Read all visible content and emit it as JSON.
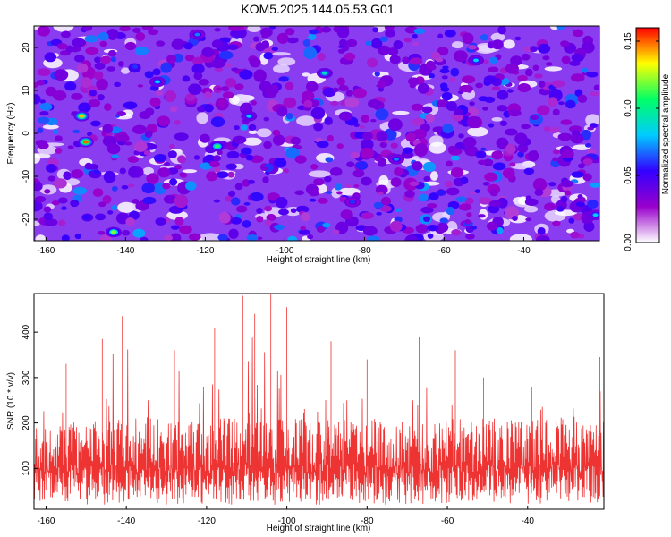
{
  "chart_data": [
    {
      "type": "heatmap",
      "title": "KOM5.2025.144.05.53.G01",
      "xlabel": "Height of straight line (km)",
      "ylabel": "Frequency (Hz)",
      "xlim": [
        -163,
        -21
      ],
      "ylim": [
        -25,
        25
      ],
      "xticks": [
        -160,
        -140,
        -120,
        -100,
        -80,
        -60,
        -40
      ],
      "yticks": [
        -20,
        -10,
        0,
        10,
        20
      ],
      "colorbar": {
        "label": "Normalized spectral amplitude",
        "range": [
          0.0,
          0.16
        ],
        "ticks": [
          "0.00",
          "0.05",
          "0.10",
          "0.15"
        ],
        "colormap": [
          "#ffffff",
          "#9900cc",
          "#3300ff",
          "#00ccff",
          "#00ff66",
          "#ffff00",
          "#ff0000"
        ]
      },
      "hotspots": [
        {
          "x": -151,
          "y": 4,
          "value": 0.14
        },
        {
          "x": -150,
          "y": -2,
          "value": 0.15
        },
        {
          "x": -117,
          "y": -3,
          "value": 0.11
        },
        {
          "x": -143,
          "y": -23,
          "value": 0.12
        },
        {
          "x": -90,
          "y": 14,
          "value": 0.09
        },
        {
          "x": -52,
          "y": 17,
          "value": 0.08
        },
        {
          "x": -22,
          "y": -19,
          "value": 0.08
        },
        {
          "x": -132,
          "y": 12,
          "value": 0.08
        },
        {
          "x": -109,
          "y": 4,
          "value": 0.08
        },
        {
          "x": -72,
          "y": -6,
          "value": 0.07
        },
        {
          "x": -122,
          "y": 23,
          "value": 0.07
        },
        {
          "x": -83,
          "y": -16,
          "value": 0.06
        }
      ]
    },
    {
      "type": "line",
      "xlabel": "Height of straight line (km)",
      "ylabel": "SNR (10 * v/v)",
      "xlim": [
        -163,
        -21
      ],
      "ylim": [
        10,
        485
      ],
      "xticks": [
        -160,
        -140,
        -120,
        -100,
        -80,
        -60,
        -40
      ],
      "yticks": [
        100,
        200,
        300,
        400
      ],
      "color": "#ee3333",
      "peaks": [
        {
          "x": -163,
          "y": 250
        },
        {
          "x": -155,
          "y": 330
        },
        {
          "x": -146,
          "y": 385
        },
        {
          "x": -141,
          "y": 435
        },
        {
          "x": -128,
          "y": 360
        },
        {
          "x": -118,
          "y": 410
        },
        {
          "x": -111,
          "y": 480
        },
        {
          "x": -108,
          "y": 440
        },
        {
          "x": -104,
          "y": 490
        },
        {
          "x": -100,
          "y": 455
        },
        {
          "x": -89,
          "y": 380
        },
        {
          "x": -80,
          "y": 340
        },
        {
          "x": -67,
          "y": 390
        },
        {
          "x": -58,
          "y": 360
        },
        {
          "x": -51,
          "y": 300
        },
        {
          "x": -39,
          "y": 280
        },
        {
          "x": -22,
          "y": 345
        }
      ],
      "baseline_mean": 130
    }
  ]
}
